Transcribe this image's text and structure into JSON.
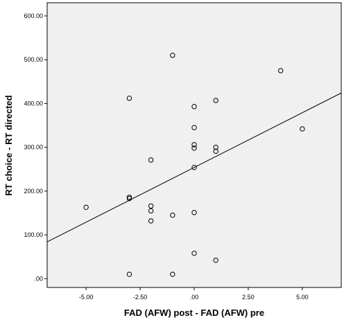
{
  "chart_data": {
    "type": "scatter",
    "title": "",
    "xlabel": "FAD (AFW) post - FAD (AFW) pre",
    "ylabel": "RT choice - RT directed",
    "xlim": [
      -6.8,
      6.8
    ],
    "ylim": [
      -20,
      630
    ],
    "x_ticks": [
      -5.0,
      -2.5,
      0.0,
      2.5,
      5.0
    ],
    "x_tick_labels": [
      "-5.00",
      "-2.50",
      ".00",
      "2.50",
      "5.00"
    ],
    "y_ticks": [
      0,
      100,
      200,
      300,
      400,
      500,
      600
    ],
    "y_tick_labels": [
      ".00",
      "100.00",
      "200.00",
      "300.00",
      "400.00",
      "500.00",
      "600.00"
    ],
    "grid": false,
    "plot_background": "#f0f0f0",
    "marker_color": "#000000",
    "line_color": "#000000",
    "series": [
      {
        "points": [
          {
            "x": -5,
            "y": 163
          },
          {
            "x": -3,
            "y": 412
          },
          {
            "x": -3,
            "y": 186
          },
          {
            "x": -3,
            "y": 183
          },
          {
            "x": -3,
            "y": 10
          },
          {
            "x": -2,
            "y": 271
          },
          {
            "x": -2,
            "y": 166
          },
          {
            "x": -2,
            "y": 155
          },
          {
            "x": -2,
            "y": 132
          },
          {
            "x": -1,
            "y": 510
          },
          {
            "x": -1,
            "y": 145
          },
          {
            "x": -1,
            "y": 10
          },
          {
            "x": 0,
            "y": 393
          },
          {
            "x": 0,
            "y": 345
          },
          {
            "x": 0,
            "y": 306
          },
          {
            "x": 0,
            "y": 298
          },
          {
            "x": 0,
            "y": 254
          },
          {
            "x": 0,
            "y": 151
          },
          {
            "x": 0,
            "y": 58
          },
          {
            "x": 1,
            "y": 407
          },
          {
            "x": 1,
            "y": 300
          },
          {
            "x": 1,
            "y": 291
          },
          {
            "x": 1,
            "y": 42
          },
          {
            "x": 4,
            "y": 475
          },
          {
            "x": 5,
            "y": 342
          }
        ]
      }
    ],
    "fit_line": {
      "intercept": 254,
      "slope": 25,
      "x_range": [
        -6.8,
        6.8
      ]
    }
  }
}
